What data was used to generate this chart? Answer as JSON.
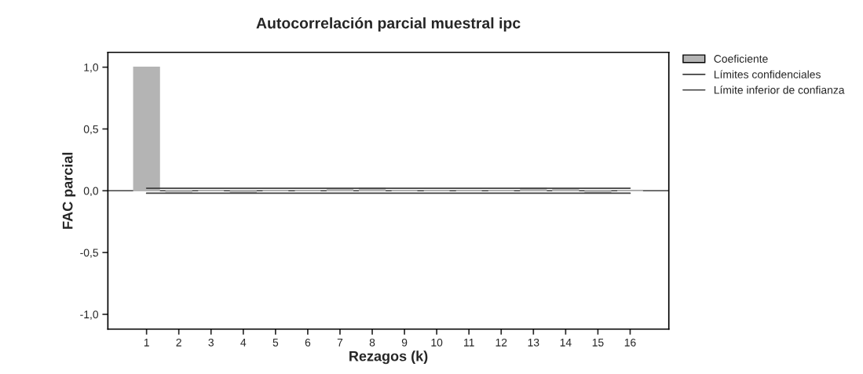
{
  "chart_data": {
    "type": "bar",
    "title": "Autocorrelación parcial muestral ipc",
    "xlabel": "Rezagos (k)",
    "ylabel": "FAC parcial",
    "categories": [
      "1",
      "2",
      "3",
      "4",
      "5",
      "6",
      "7",
      "8",
      "9",
      "10",
      "11",
      "12",
      "13",
      "14",
      "15",
      "16"
    ],
    "series": [
      {
        "name": "Coeficiente",
        "color": "#b4b4b4",
        "values": [
          1.0,
          -0.01,
          0.0,
          -0.02,
          0.0,
          0.0,
          0.01,
          0.02,
          0.0,
          0.0,
          0.0,
          0.0,
          0.02,
          0.01,
          -0.02,
          0.0
        ]
      },
      {
        "name": "Límites confidenciales",
        "type": "line",
        "color": "#404040",
        "values": [
          0.02,
          0.02,
          0.02,
          0.02,
          0.02,
          0.02,
          0.02,
          0.02,
          0.02,
          0.02,
          0.02,
          0.02,
          0.02,
          0.02,
          0.02,
          0.02
        ]
      },
      {
        "name": "Límite inferior de confianza",
        "type": "line",
        "color": "#404040",
        "values": [
          -0.02,
          -0.02,
          -0.02,
          -0.02,
          -0.02,
          -0.02,
          -0.02,
          -0.02,
          -0.02,
          -0.02,
          -0.02,
          -0.02,
          -0.02,
          -0.02,
          -0.02,
          -0.02
        ]
      }
    ],
    "ylim": [
      -1.12,
      1.12
    ],
    "yticks": [
      {
        "value": -1.0,
        "label": "-1,0"
      },
      {
        "value": -0.5,
        "label": "-0,5"
      },
      {
        "value": 0.0,
        "label": "0,0"
      },
      {
        "value": 0.5,
        "label": "0,5"
      },
      {
        "value": 1.0,
        "label": "1,0"
      }
    ],
    "ref_lines": [
      {
        "axis": "y",
        "value": 0.0,
        "color": "#404040"
      }
    ],
    "legend": "top right",
    "grid": false
  }
}
